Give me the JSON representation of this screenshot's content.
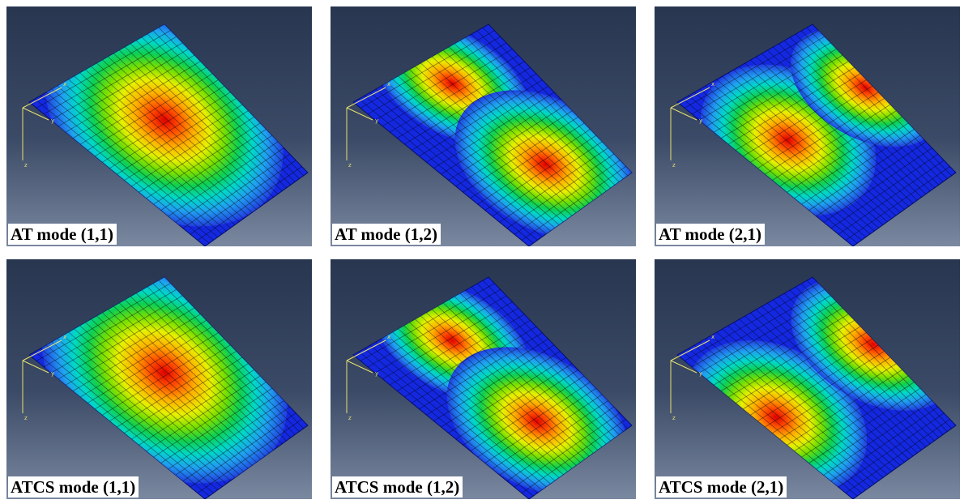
{
  "panels": [
    {
      "label": "AT mode (1,1)"
    },
    {
      "label": "AT mode (1,2)"
    },
    {
      "label": "AT mode (2,1)"
    },
    {
      "label": "ATCS mode (1,1)"
    },
    {
      "label": "ATCS mode (1,2)"
    },
    {
      "label": "ATCS mode (2,1)"
    }
  ],
  "triad": {
    "x": "x",
    "y": "y",
    "z": "z"
  }
}
